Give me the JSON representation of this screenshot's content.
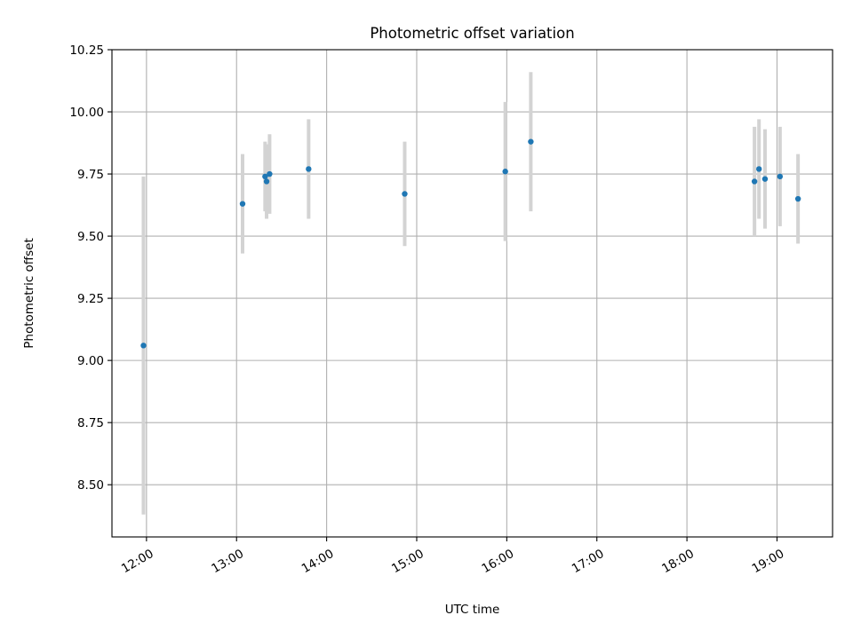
{
  "chart_data": {
    "type": "scatter",
    "title": "Photometric offset variation",
    "xlabel": "UTC time",
    "ylabel": "Photometric offset",
    "xlim": [
      "11:37",
      "19:37"
    ],
    "ylim": [
      8.29,
      10.25
    ],
    "x_ticks": [
      "12:00",
      "13:00",
      "14:00",
      "15:00",
      "16:00",
      "17:00",
      "18:00",
      "19:00"
    ],
    "y_ticks": [
      8.5,
      8.75,
      9.0,
      9.25,
      9.5,
      9.75,
      10.0,
      10.25
    ],
    "y_tick_labels": [
      "8.50",
      "8.75",
      "9.00",
      "9.25",
      "9.50",
      "9.75",
      "10.00",
      "10.25"
    ],
    "grid": true,
    "x_tick_rotation": 30,
    "marker_color": "#1f77b4",
    "errorbar_color": "#d3d3d3",
    "points": [
      {
        "time": "11:58",
        "y": 9.06,
        "yerr": 0.68
      },
      {
        "time": "13:04",
        "y": 9.63,
        "yerr": 0.2
      },
      {
        "time": "13:19",
        "y": 9.74,
        "yerr": 0.14
      },
      {
        "time": "13:20",
        "y": 9.72,
        "yerr": 0.15
      },
      {
        "time": "13:22",
        "y": 9.75,
        "yerr": 0.16
      },
      {
        "time": "13:48",
        "y": 9.77,
        "yerr": 0.2
      },
      {
        "time": "14:52",
        "y": 9.67,
        "yerr": 0.21
      },
      {
        "time": "15:59",
        "y": 9.76,
        "yerr": 0.28
      },
      {
        "time": "16:16",
        "y": 9.88,
        "yerr": 0.28
      },
      {
        "time": "18:45",
        "y": 9.72,
        "yerr": 0.22
      },
      {
        "time": "18:48",
        "y": 9.77,
        "yerr": 0.2
      },
      {
        "time": "18:52",
        "y": 9.73,
        "yerr": 0.2
      },
      {
        "time": "19:02",
        "y": 9.74,
        "yerr": 0.2
      },
      {
        "time": "19:14",
        "y": 9.65,
        "yerr": 0.18
      }
    ]
  }
}
